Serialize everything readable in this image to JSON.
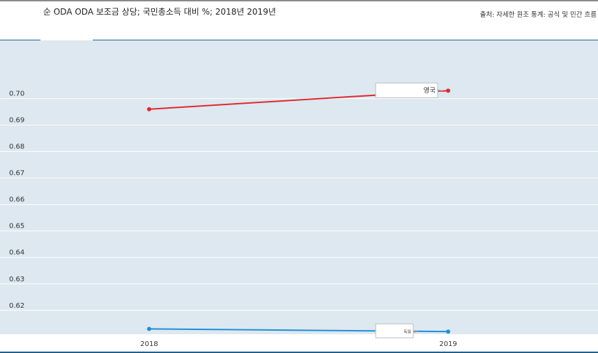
{
  "header": {
    "title": "순 ODA ODA 보조금 상당; 국민총소득 대비 %; 2018년 2019년",
    "source": "출처: 자세한 원조 통계: 공식 및 민간 흐름"
  },
  "colors": {
    "plot_background": "#dde8f0",
    "grid": "#ffffff",
    "accent": "#1f5f8b"
  },
  "chart_data": {
    "type": "line",
    "title": "순 ODA ODA 보조금 상당; 국민총소득 대비 %; 2018년 2019년",
    "x": [
      "2018",
      "2019"
    ],
    "y_ticks": [
      0.62,
      0.63,
      0.64,
      0.65,
      0.66,
      0.67,
      0.68,
      0.69,
      0.7
    ],
    "ylim": [
      0.611,
      0.722
    ],
    "grid": true,
    "series": [
      {
        "name": "영국",
        "values": [
          0.696,
          0.703
        ],
        "color": "#e0282e"
      },
      {
        "name": "독일",
        "values": [
          0.613,
          0.612
        ],
        "color": "#1e8fd8"
      }
    ]
  }
}
